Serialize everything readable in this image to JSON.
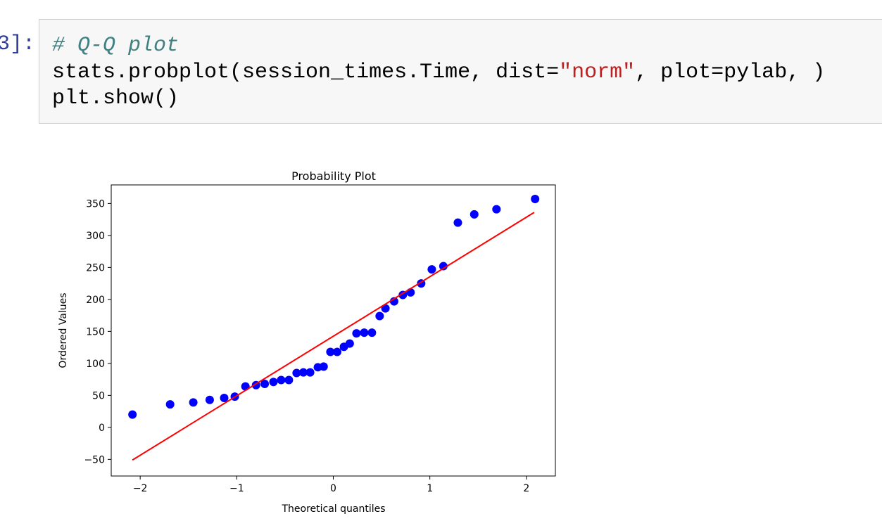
{
  "cell": {
    "prompt": "3]:",
    "comment": "# Q-Q plot",
    "lines": [
      [
        "stats.probplot(session_times.Time, dist=",
        "\"norm\"",
        ", plot=pylab, )"
      ],
      [
        "plt.show()"
      ]
    ]
  },
  "chart_data": {
    "type": "scatter",
    "title": "Probability Plot",
    "x_label": "Theoretical quantiles",
    "y_label": "Ordered Values",
    "xlim": [
      -2.3,
      2.3
    ],
    "xticks": [
      {
        "value": -2,
        "label": "−2"
      },
      {
        "value": -1,
        "label": "−1"
      },
      0,
      1,
      2
    ],
    "ylim": [
      -76,
      379
    ],
    "yticks": [
      {
        "value": -50,
        "label": "−50"
      },
      0,
      50,
      100,
      150,
      200,
      250,
      300,
      350
    ],
    "grid": false,
    "series": [
      {
        "type": "scatter",
        "color": "#0000ff",
        "x": [
          -2.08,
          -1.69,
          -1.45,
          -1.28,
          -1.13,
          -1.02,
          -0.91,
          -0.8,
          -0.71,
          -0.62,
          -0.54,
          -0.46,
          -0.38,
          -0.31,
          -0.24,
          -0.16,
          -0.1,
          -0.03,
          0.04,
          0.11,
          0.17,
          0.24,
          0.32,
          0.4,
          0.48,
          0.54,
          0.63,
          0.72,
          0.8,
          0.91,
          1.02,
          1.14,
          1.29,
          1.46,
          1.69,
          2.09
        ],
        "values": [
          20,
          36,
          39,
          43,
          46,
          48,
          64,
          66,
          68,
          71,
          74,
          74,
          85,
          86,
          86,
          94,
          95,
          118,
          118,
          126,
          131,
          147,
          148,
          148,
          174,
          186,
          197,
          207,
          211,
          225,
          247,
          252,
          320,
          333,
          341,
          357
        ]
      },
      {
        "type": "line",
        "color": "#ff0000",
        "x": [
          -2.08,
          2.08
        ],
        "values": [
          -51,
          336
        ]
      }
    ]
  }
}
